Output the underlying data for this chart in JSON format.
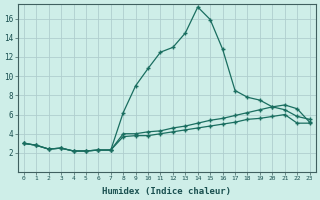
{
  "xlabel": "Humidex (Indice chaleur)",
  "bg_color": "#ceeee8",
  "grid_color": "#b0cece",
  "line_color": "#1a6e60",
  "xlim": [
    -0.5,
    23.5
  ],
  "ylim": [
    0,
    17.5
  ],
  "xticks": [
    0,
    1,
    2,
    3,
    4,
    5,
    6,
    7,
    8,
    9,
    10,
    11,
    12,
    13,
    14,
    15,
    16,
    17,
    18,
    19,
    20,
    21,
    22,
    23
  ],
  "yticks": [
    2,
    4,
    6,
    8,
    10,
    12,
    14,
    16
  ],
  "line1_x": [
    0,
    1,
    2,
    3,
    4,
    5,
    6,
    7,
    8,
    9,
    10,
    11,
    12,
    13,
    14,
    15,
    16,
    17,
    18,
    19,
    20,
    21,
    22,
    23
  ],
  "line1_y": [
    3.0,
    2.8,
    2.4,
    2.5,
    2.2,
    2.2,
    2.3,
    2.3,
    6.2,
    9.0,
    10.8,
    12.5,
    13.0,
    14.5,
    17.2,
    15.9,
    12.8,
    8.5,
    7.8,
    7.5,
    6.8,
    6.5,
    5.8,
    5.5
  ],
  "line2_x": [
    0,
    1,
    2,
    3,
    4,
    5,
    6,
    7,
    8,
    9,
    10,
    11,
    12,
    13,
    14,
    15,
    16,
    17,
    18,
    19,
    20,
    21,
    22,
    23
  ],
  "line2_y": [
    3.0,
    2.8,
    2.4,
    2.5,
    2.2,
    2.2,
    2.3,
    2.3,
    4.0,
    4.0,
    4.2,
    4.3,
    4.6,
    4.8,
    5.1,
    5.4,
    5.6,
    5.9,
    6.2,
    6.5,
    6.8,
    7.0,
    6.6,
    5.2
  ],
  "line3_x": [
    0,
    1,
    2,
    3,
    4,
    5,
    6,
    7,
    8,
    9,
    10,
    11,
    12,
    13,
    14,
    15,
    16,
    17,
    18,
    19,
    20,
    21,
    22,
    23
  ],
  "line3_y": [
    3.0,
    2.8,
    2.4,
    2.5,
    2.2,
    2.2,
    2.3,
    2.3,
    3.7,
    3.8,
    3.8,
    4.0,
    4.2,
    4.4,
    4.6,
    4.8,
    5.0,
    5.2,
    5.5,
    5.6,
    5.8,
    6.0,
    5.1,
    5.1
  ],
  "marker": "+",
  "markersize": 3,
  "linewidth": 0.9
}
